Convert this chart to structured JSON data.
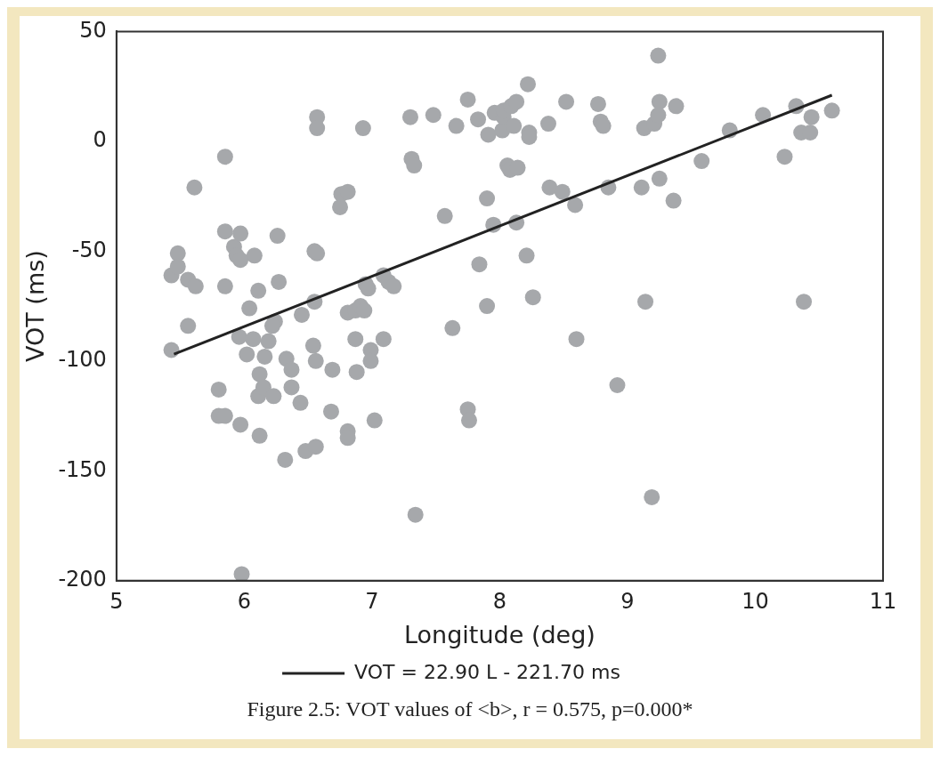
{
  "chart_data": {
    "type": "scatter",
    "xlabel": "Longitude (deg)",
    "ylabel": "VOT (ms)",
    "xlim": [
      5,
      11
    ],
    "xticks": [
      5,
      6,
      7,
      8,
      9,
      10,
      11
    ],
    "ylim": [
      -200,
      50
    ],
    "yticks": [
      -200,
      -150,
      -100,
      -50,
      0,
      50
    ],
    "marker": "circle",
    "legend": "bottom",
    "annotations": [
      "Figure 2.5: VOT values of <b>, r = 0.575, p=0.000*"
    ],
    "series": [
      {
        "type": "scatter",
        "color": "#a6a8ab",
        "x": [
          5.43,
          5.48,
          5.48,
          5.43,
          5.56,
          5.62,
          5.56,
          5.61,
          5.85,
          5.85,
          5.85,
          5.8,
          5.8,
          5.85,
          5.92,
          5.94,
          5.97,
          5.97,
          5.96,
          5.97,
          5.98,
          6.04,
          6.08,
          6.07,
          6.02,
          6.11,
          6.12,
          6.11,
          6.15,
          6.12,
          6.16,
          6.19,
          6.24,
          6.22,
          6.26,
          6.27,
          6.23,
          6.32,
          6.33,
          6.37,
          6.37,
          6.44,
          6.45,
          6.48,
          6.55,
          6.57,
          6.57,
          6.55,
          6.57,
          6.54,
          6.56,
          6.56,
          6.69,
          6.68,
          6.76,
          6.81,
          6.75,
          6.81,
          6.81,
          6.81,
          6.87,
          6.87,
          6.88,
          6.91,
          6.94,
          6.93,
          6.95,
          6.97,
          6.99,
          6.99,
          7.02,
          7.09,
          7.09,
          7.13,
          7.17,
          7.3,
          7.31,
          7.33,
          7.34,
          7.48,
          7.57,
          7.63,
          7.66,
          7.75,
          7.75,
          7.76,
          7.84,
          7.83,
          7.9,
          7.9,
          7.95,
          7.91,
          7.96,
          8.02,
          8.03,
          8.03,
          8.06,
          8.08,
          8.09,
          8.11,
          8.13,
          8.14,
          8.13,
          8.22,
          8.21,
          8.23,
          8.23,
          8.26,
          8.38,
          8.39,
          8.49,
          8.52,
          8.59,
          8.6,
          8.77,
          8.79,
          8.81,
          8.85,
          8.92,
          9.11,
          9.13,
          9.14,
          9.19,
          9.21,
          9.24,
          9.25,
          9.25,
          9.24,
          9.38,
          9.36,
          9.58,
          9.8,
          10.06,
          10.23,
          10.32,
          10.38,
          10.44,
          10.36,
          10.43,
          10.6
        ],
        "values": [
          -61,
          -51,
          -57,
          -95,
          -63,
          -66,
          -84,
          -21,
          -7,
          -41,
          -66,
          -113,
          -125,
          -125,
          -48,
          -52,
          -42,
          -54,
          -89,
          -129,
          -197,
          -76,
          -52,
          -90,
          -97,
          -68,
          -106,
          -116,
          -112,
          -134,
          -98,
          -91,
          -82,
          -84,
          -43,
          -64,
          -116,
          -145,
          -99,
          -104,
          -112,
          -119,
          -79,
          -141,
          -73,
          11,
          6,
          -50,
          -51,
          -93,
          -100,
          -139,
          -104,
          -123,
          -24,
          -23,
          -30,
          -78,
          -132,
          -135,
          -77,
          -90,
          -105,
          -75,
          -77,
          6,
          -65,
          -67,
          -95,
          -100,
          -127,
          -90,
          -61,
          -64,
          -66,
          11,
          -8,
          -11,
          -170,
          12,
          -34,
          -85,
          7,
          19,
          -122,
          -127,
          -56,
          10,
          -75,
          -26,
          -38,
          3,
          13,
          5,
          11,
          14,
          -11,
          -13,
          16,
          7,
          18,
          -12,
          -37,
          26,
          -52,
          4,
          2,
          -71,
          8,
          -21,
          -23,
          18,
          -29,
          -90,
          17,
          9,
          7,
          -21,
          -111,
          -21,
          6,
          -73,
          -162,
          8,
          39,
          -17,
          18,
          12,
          16,
          -27,
          -9,
          5,
          12,
          -7,
          16,
          -73,
          11,
          4,
          4,
          14
        ]
      },
      {
        "type": "line",
        "name": "VOT = 22.90 L - 221.70 ms",
        "color": "#222222",
        "marker": "none",
        "line_style": "solid",
        "x": [
          5.45,
          10.6
        ],
        "values": [
          -96.9,
          21.0
        ]
      }
    ]
  }
}
